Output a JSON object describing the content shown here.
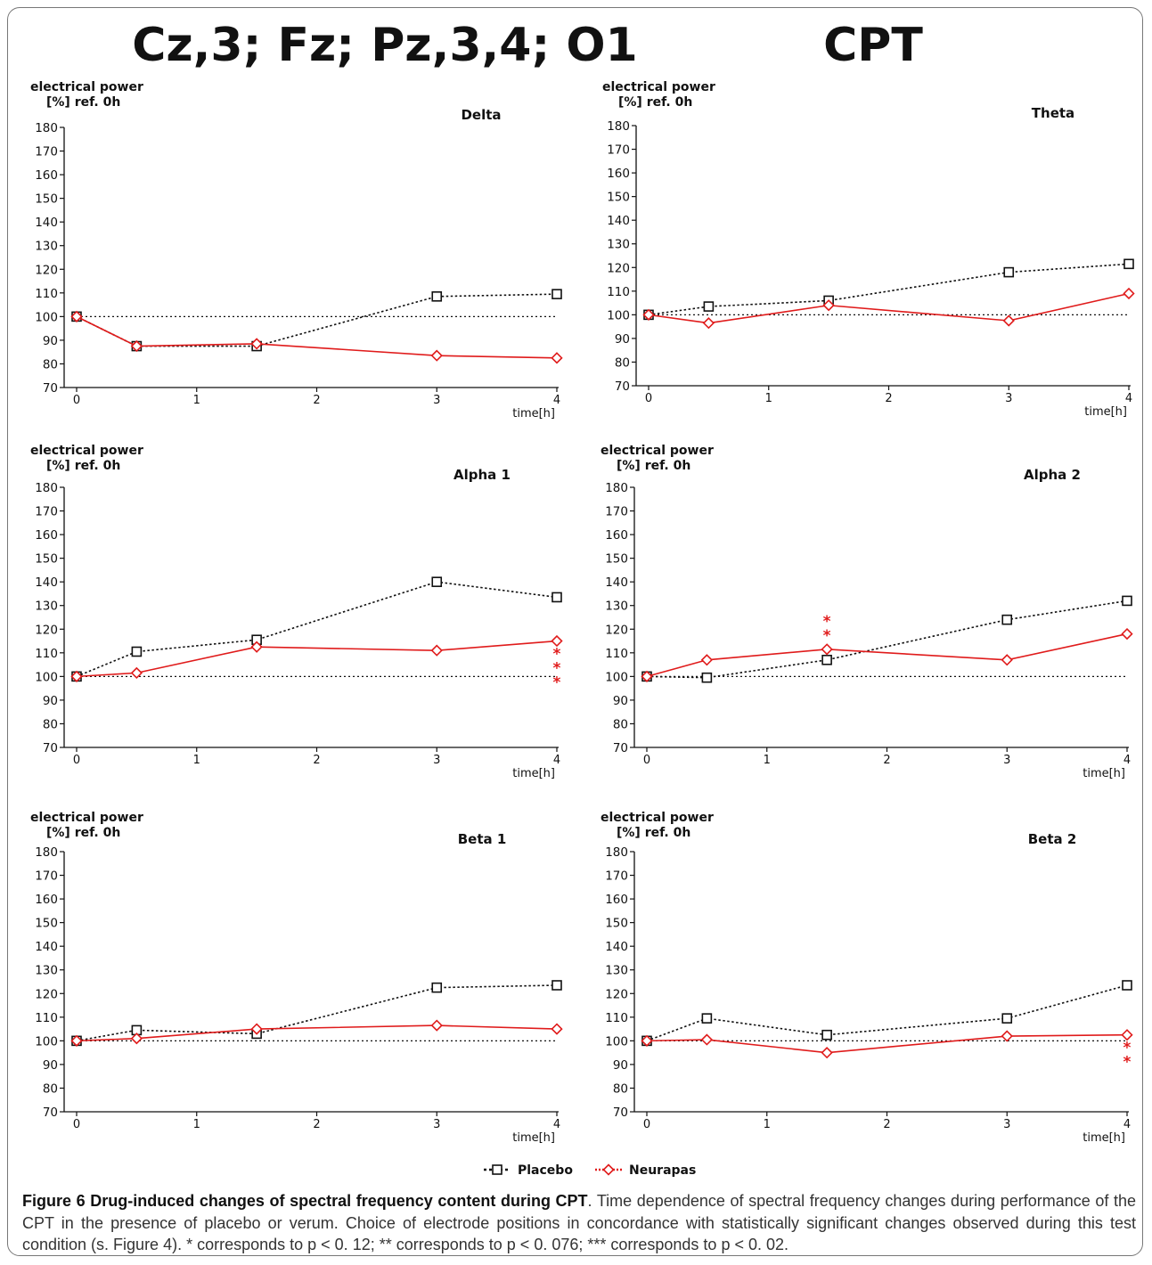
{
  "header": {
    "title_left": "Cz,3; Fz; Pz,3,4; O1",
    "title_right": "CPT"
  },
  "colors": {
    "placebo": "#111111",
    "neurapas": "#e01b1b",
    "reference": "#111111"
  },
  "chart_data": [
    {
      "type": "line",
      "title": "Delta",
      "ylabel_line1": "electrical power",
      "ylabel_line2": "[%] ref. 0h",
      "xlabel": "time[h]",
      "ylim": [
        70,
        180
      ],
      "yticks": [
        70,
        80,
        90,
        100,
        110,
        120,
        130,
        140,
        150,
        160,
        170,
        180
      ],
      "xlim": [
        0,
        4
      ],
      "xticks": [
        0,
        1,
        2,
        3,
        4
      ],
      "reference_line": 100,
      "x": [
        0,
        0.5,
        1.5,
        3,
        4
      ],
      "series": [
        {
          "name": "Placebo",
          "marker": "square",
          "style": "dotted",
          "values": [
            100,
            87.5,
            87.5,
            108.5,
            109.5
          ]
        },
        {
          "name": "Neurapas",
          "marker": "diamond",
          "style": "solid",
          "values": [
            100,
            87.5,
            88.5,
            83.5,
            82.5
          ]
        }
      ],
      "annotations": []
    },
    {
      "type": "line",
      "title": "Theta",
      "ylabel_line1": "electrical power",
      "ylabel_line2": "[%] ref. 0h",
      "xlabel": "time[h]",
      "ylim": [
        70,
        180
      ],
      "yticks": [
        70,
        80,
        90,
        100,
        110,
        120,
        130,
        140,
        150,
        160,
        170,
        180
      ],
      "xlim": [
        0,
        4
      ],
      "xticks": [
        0,
        1,
        2,
        3,
        4
      ],
      "reference_line": 100,
      "x": [
        0,
        0.5,
        1.5,
        3,
        4
      ],
      "series": [
        {
          "name": "Placebo",
          "marker": "square",
          "style": "dotted",
          "values": [
            100,
            103.5,
            106,
            118,
            121.5
          ]
        },
        {
          "name": "Neurapas",
          "marker": "diamond",
          "style": "solid",
          "values": [
            100,
            96.5,
            104,
            97.5,
            109
          ]
        }
      ],
      "annotations": []
    },
    {
      "type": "line",
      "title": "Alpha 1",
      "ylabel_line1": "electrical power",
      "ylabel_line2": "[%] ref. 0h",
      "xlabel": "time[h]",
      "ylim": [
        70,
        180
      ],
      "yticks": [
        70,
        80,
        90,
        100,
        110,
        120,
        130,
        140,
        150,
        160,
        170,
        180
      ],
      "xlim": [
        0,
        4
      ],
      "xticks": [
        0,
        1,
        2,
        3,
        4
      ],
      "reference_line": 100,
      "x": [
        0,
        0.5,
        1.5,
        3,
        4
      ],
      "series": [
        {
          "name": "Placebo",
          "marker": "square",
          "style": "dotted",
          "values": [
            100,
            110.5,
            115.5,
            140,
            133.5
          ]
        },
        {
          "name": "Neurapas",
          "marker": "diamond",
          "style": "solid",
          "values": [
            100,
            101.5,
            112.5,
            111,
            115
          ]
        }
      ],
      "annotations": [
        {
          "x": 4,
          "text": "***",
          "placement": "below"
        }
      ]
    },
    {
      "type": "line",
      "title": "Alpha 2",
      "ylabel_line1": "electrical power",
      "ylabel_line2": "[%] ref. 0h",
      "xlabel": "time[h]",
      "ylim": [
        70,
        180
      ],
      "yticks": [
        70,
        80,
        90,
        100,
        110,
        120,
        130,
        140,
        150,
        160,
        170,
        180
      ],
      "xlim": [
        0,
        4
      ],
      "xticks": [
        0,
        1,
        2,
        3,
        4
      ],
      "reference_line": 100,
      "x": [
        0,
        0.5,
        1.5,
        3,
        4
      ],
      "series": [
        {
          "name": "Placebo",
          "marker": "square",
          "style": "dotted",
          "values": [
            100,
            99.5,
            107,
            124,
            132
          ]
        },
        {
          "name": "Neurapas",
          "marker": "diamond",
          "style": "solid",
          "values": [
            100,
            107,
            111.5,
            107,
            118
          ]
        }
      ],
      "annotations": [
        {
          "x": 1.5,
          "text": "**",
          "placement": "above"
        }
      ]
    },
    {
      "type": "line",
      "title": "Beta 1",
      "ylabel_line1": "electrical power",
      "ylabel_line2": "[%] ref. 0h",
      "xlabel": "time[h]",
      "ylim": [
        70,
        180
      ],
      "yticks": [
        70,
        80,
        90,
        100,
        110,
        120,
        130,
        140,
        150,
        160,
        170,
        180
      ],
      "xlim": [
        0,
        4
      ],
      "xticks": [
        0,
        1,
        2,
        3,
        4
      ],
      "reference_line": 100,
      "x": [
        0,
        0.5,
        1.5,
        3,
        4
      ],
      "series": [
        {
          "name": "Placebo",
          "marker": "square",
          "style": "dotted",
          "values": [
            100,
            104.5,
            103,
            122.5,
            123.5
          ]
        },
        {
          "name": "Neurapas",
          "marker": "diamond",
          "style": "solid",
          "values": [
            100,
            101,
            105,
            106.5,
            105
          ]
        }
      ],
      "annotations": []
    },
    {
      "type": "line",
      "title": "Beta 2",
      "ylabel_line1": "electrical power",
      "ylabel_line2": "[%] ref. 0h",
      "xlabel": "time[h]",
      "ylim": [
        70,
        180
      ],
      "yticks": [
        70,
        80,
        90,
        100,
        110,
        120,
        130,
        140,
        150,
        160,
        170,
        180
      ],
      "xlim": [
        0,
        4
      ],
      "xticks": [
        0,
        1,
        2,
        3,
        4
      ],
      "reference_line": 100,
      "x": [
        0,
        0.5,
        1.5,
        3,
        4
      ],
      "series": [
        {
          "name": "Placebo",
          "marker": "square",
          "style": "dotted",
          "values": [
            100,
            109.5,
            102.5,
            109.5,
            123.5
          ]
        },
        {
          "name": "Neurapas",
          "marker": "diamond",
          "style": "solid",
          "values": [
            100,
            100.5,
            95,
            102,
            102.5
          ]
        }
      ],
      "annotations": [
        {
          "x": 4,
          "text": "**",
          "placement": "below"
        }
      ]
    }
  ],
  "legend": {
    "placement": "bottom-center",
    "items": [
      {
        "label": "Placebo",
        "marker": "square",
        "style": "dotted"
      },
      {
        "label": "Neurapas",
        "marker": "diamond",
        "style": "solid"
      }
    ]
  },
  "caption": {
    "title": "Figure 6 Drug-induced changes of spectral frequency content during CPT",
    "body": ". Time dependence of spectral frequency changes during performance of the CPT in the presence of placebo or verum. Choice of electrode positions in concordance with statistically significant changes observed during this test condition (s. Figure 4). * corresponds to p < 0. 12; ** corresponds to p < 0. 076; *** corresponds to p < 0. 02."
  }
}
